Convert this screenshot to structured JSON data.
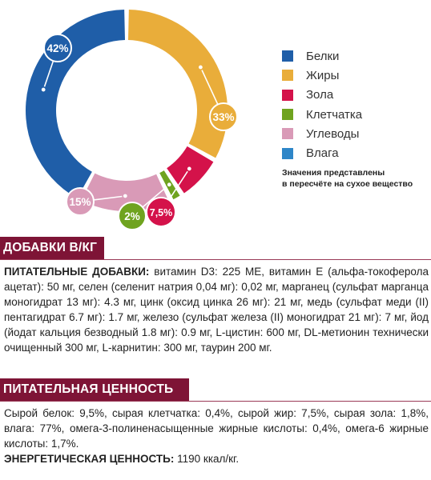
{
  "chart_data": {
    "type": "pie",
    "style": "donut",
    "categories": [
      "Белки",
      "Жиры",
      "Зола",
      "Клетчатка",
      "Углеводы",
      "Влага"
    ],
    "values": [
      42,
      33,
      7.5,
      2,
      15,
      0
    ],
    "data_labels": [
      "42%",
      "33%",
      "7,5%",
      "2%",
      "15%",
      ""
    ],
    "colors": [
      "#1f5ea8",
      "#e9ad3a",
      "#d4124a",
      "#6fa31f",
      "#d99ab7",
      "#2e86c8"
    ]
  },
  "legend": {
    "items": [
      {
        "label": "Белки",
        "color": "#1f5ea8"
      },
      {
        "label": "Жиры",
        "color": "#e9ad3a"
      },
      {
        "label": "Зола",
        "color": "#d4124a"
      },
      {
        "label": "Клетчатка",
        "color": "#6fa31f"
      },
      {
        "label": "Углеводы",
        "color": "#d99ab7"
      },
      {
        "label": "Влага",
        "color": "#2e86c8"
      }
    ],
    "note_line1": "Значения представлены",
    "note_line2": "в пересчёте на сухое вещество"
  },
  "additives": {
    "title": "ДОБАВКИ В/КГ",
    "lead": "ПИТАТЕЛЬНЫЕ ДОБАВКИ:",
    "text": " витамин D3: 225 МЕ, витамин Е (альфа-токоферола ацетат): 50 мг, селен (селенит натрия 0,04 мг): 0,02 мг, марганец (сульфат марганца моногидрат 13 мг): 4.3 мг, цинк (оксид цинка 26 мг): 21 мг, медь (сульфат меди (II) пентагидрат 6.7 мг): 1.7 мг, железо (сульфат железа (II) моногидрат 21 мг): 7 мг, йод (йодат кальция безводный 1.8 мг): 0.9 мг, L-цистин: 600 мг, DL-метионин технически очищенный 300 мг, L-карнитин: 300 мг, таурин 200 мг."
  },
  "nutrition": {
    "title": "ПИТАТЕЛЬНАЯ ЦЕННОСТЬ",
    "text": "Сырой белок: 9,5%, сырая клетчатка: 0,4%, сырой жир: 7,5%, сырая зола: 1,8%, влага: 77%, омега-3-полиненасыщенные жирные кислоты: 0,4%, омега-6 жирные кислоты: 1,7%.",
    "energy_lead": "ЭНЕРГЕТИЧЕСКАЯ ЦЕННОСТЬ:",
    "energy_value": " 1190 ккал/кг."
  }
}
